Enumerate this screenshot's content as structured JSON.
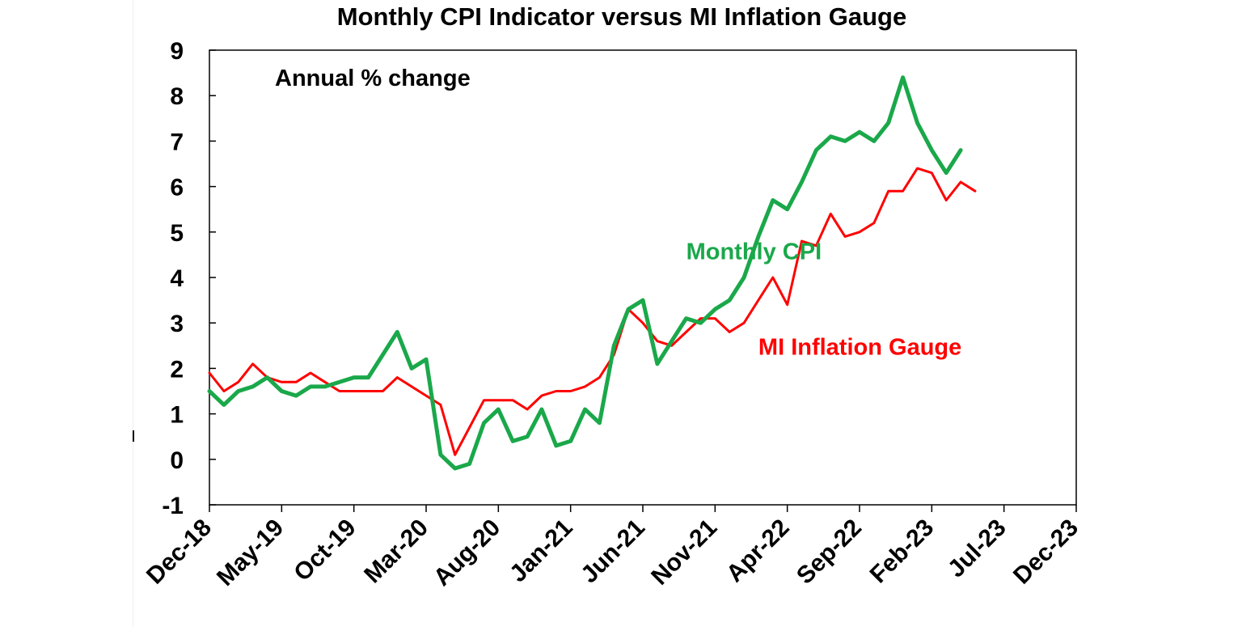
{
  "colors": {
    "monthly_cpi": "#1aa84a",
    "mi_gauge": "#ff0000",
    "axis": "#000000",
    "background": "#ffffff"
  },
  "chart_data": {
    "type": "line",
    "title": "Monthly CPI Indicator versus MI Inflation Gauge",
    "annotation": "Annual % change",
    "xlabel": "",
    "ylabel": "",
    "ylim": [
      -1,
      9
    ],
    "yticks": [
      "-1",
      "0",
      "1",
      "2",
      "3",
      "4",
      "5",
      "6",
      "7",
      "8",
      "9"
    ],
    "x_start": "Dec-18",
    "x_tick_labels": [
      "Dec-18",
      "May-19",
      "Oct-19",
      "Mar-20",
      "Aug-20",
      "Jan-21",
      "Jun-21",
      "Nov-21",
      "Apr-22",
      "Sep-22",
      "Feb-23",
      "Jul-23",
      "Dec-23"
    ],
    "grid": false,
    "legend": "inline labels",
    "series": [
      {
        "name": "Monthly CPI",
        "label_anchor_month_index": 33,
        "label_value": 4.4,
        "values": [
          1.5,
          1.2,
          1.5,
          1.6,
          1.8,
          1.5,
          1.4,
          1.6,
          1.6,
          1.7,
          1.8,
          1.8,
          2.3,
          2.8,
          2.0,
          2.2,
          0.1,
          -0.2,
          -0.1,
          0.8,
          1.1,
          0.4,
          0.5,
          1.1,
          0.3,
          0.4,
          1.1,
          0.8,
          2.5,
          3.3,
          3.5,
          2.1,
          2.6,
          3.1,
          3.0,
          3.3,
          3.5,
          4.0,
          4.9,
          5.7,
          5.5,
          6.1,
          6.8,
          7.1,
          7.0,
          7.2,
          7.0,
          7.4,
          8.4,
          7.4,
          6.8,
          6.3,
          6.8
        ]
      },
      {
        "name": "MI Inflation Gauge",
        "label_anchor_month_index": 38,
        "label_value": 2.3,
        "values": [
          1.9,
          1.5,
          1.7,
          2.1,
          1.8,
          1.7,
          1.7,
          1.9,
          1.7,
          1.5,
          1.5,
          1.5,
          1.5,
          1.8,
          1.6,
          1.4,
          1.2,
          0.1,
          0.7,
          1.3,
          1.3,
          1.3,
          1.1,
          1.4,
          1.5,
          1.5,
          1.6,
          1.8,
          2.3,
          3.3,
          3.0,
          2.6,
          2.5,
          2.8,
          3.1,
          3.1,
          2.8,
          3.0,
          3.5,
          4.0,
          3.4,
          4.8,
          4.7,
          5.4,
          4.9,
          5.0,
          5.2,
          5.9,
          5.9,
          6.4,
          6.3,
          5.7,
          6.1,
          5.9
        ]
      }
    ]
  }
}
